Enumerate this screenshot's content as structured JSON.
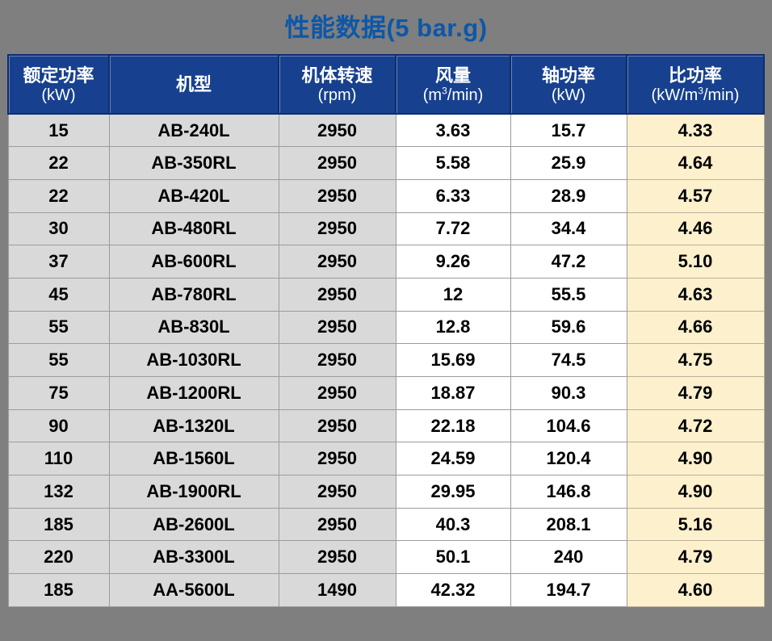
{
  "title": "性能数据(5 bar.g)",
  "colors": {
    "page_background": "#7f7f7f",
    "title_text": "#0d57a8",
    "header_background": "#17418f",
    "header_text": "#ffffff",
    "cell_gray": "#d9d9d9",
    "cell_white": "#ffffff",
    "cell_cream": "#fdf0cd",
    "cell_border": "#9c9c9c"
  },
  "chart_data": {
    "type": "table",
    "title": "性能数据(5 bar.g)",
    "columns": [
      {
        "label": "额定功率",
        "unit_pre": "(kW)",
        "unit_sup": "",
        "unit_post": ""
      },
      {
        "label": "机型",
        "unit_pre": "",
        "unit_sup": "",
        "unit_post": ""
      },
      {
        "label": "机体转速",
        "unit_pre": "(rpm)",
        "unit_sup": "",
        "unit_post": ""
      },
      {
        "label": "风量",
        "unit_pre": "(m",
        "unit_sup": "3",
        "unit_post": "/min)"
      },
      {
        "label": "轴功率",
        "unit_pre": "(kW)",
        "unit_sup": "",
        "unit_post": ""
      },
      {
        "label": "比功率",
        "unit_pre": "(kW/m",
        "unit_sup": "3",
        "unit_post": "/min)"
      }
    ],
    "rows": [
      [
        "15",
        "AB-240L",
        "2950",
        "3.63",
        "15.7",
        "4.33"
      ],
      [
        "22",
        "AB-350RL",
        "2950",
        "5.58",
        "25.9",
        "4.64"
      ],
      [
        "22",
        "AB-420L",
        "2950",
        "6.33",
        "28.9",
        "4.57"
      ],
      [
        "30",
        "AB-480RL",
        "2950",
        "7.72",
        "34.4",
        "4.46"
      ],
      [
        "37",
        "AB-600RL",
        "2950",
        "9.26",
        "47.2",
        "5.10"
      ],
      [
        "45",
        "AB-780RL",
        "2950",
        "12",
        "55.5",
        "4.63"
      ],
      [
        "55",
        "AB-830L",
        "2950",
        "12.8",
        "59.6",
        "4.66"
      ],
      [
        "55",
        "AB-1030RL",
        "2950",
        "15.69",
        "74.5",
        "4.75"
      ],
      [
        "75",
        "AB-1200RL",
        "2950",
        "18.87",
        "90.3",
        "4.79"
      ],
      [
        "90",
        "AB-1320L",
        "2950",
        "22.18",
        "104.6",
        "4.72"
      ],
      [
        "110",
        "AB-1560L",
        "2950",
        "24.59",
        "120.4",
        "4.90"
      ],
      [
        "132",
        "AB-1900RL",
        "2950",
        "29.95",
        "146.8",
        "4.90"
      ],
      [
        "185",
        "AB-2600L",
        "2950",
        "40.3",
        "208.1",
        "5.16"
      ],
      [
        "220",
        "AB-3300L",
        "2950",
        "50.1",
        "240",
        "4.79"
      ],
      [
        "185",
        "AA-5600L",
        "1490",
        "42.32",
        "194.7",
        "4.60"
      ]
    ]
  }
}
